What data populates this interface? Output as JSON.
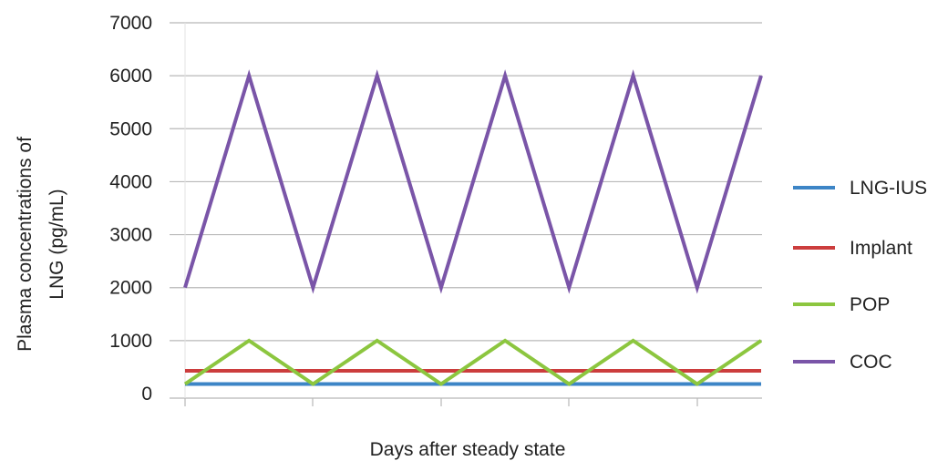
{
  "chart_data": {
    "type": "line",
    "title": "",
    "xlabel": "Days after steady state",
    "ylabel_lines": [
      "Plasma concentrations of",
      "LNG (pg/mL)"
    ],
    "ylim": [
      0,
      7000
    ],
    "yticks": [
      0,
      1000,
      2000,
      3000,
      4000,
      5000,
      6000,
      7000
    ],
    "x": [
      0,
      1,
      2,
      3,
      4,
      5,
      6,
      7,
      8,
      9
    ],
    "grid": "horizontal",
    "legend_position": "right",
    "series": [
      {
        "name": "LNG-IUS",
        "color": "#3d85c6",
        "values": [
          180,
          180,
          180,
          180,
          180,
          180,
          180,
          180,
          180,
          180
        ]
      },
      {
        "name": "Implant",
        "color": "#cc3d3d",
        "values": [
          430,
          430,
          430,
          430,
          430,
          430,
          430,
          430,
          430,
          430
        ]
      },
      {
        "name": "POP",
        "color": "#8cc63f",
        "values": [
          180,
          1000,
          180,
          1000,
          180,
          1000,
          180,
          1000,
          180,
          1000
        ]
      },
      {
        "name": "COC",
        "color": "#7a55a8",
        "values": [
          2000,
          6000,
          2000,
          6000,
          2000,
          6000,
          2000,
          6000,
          2000,
          6000
        ]
      }
    ]
  }
}
